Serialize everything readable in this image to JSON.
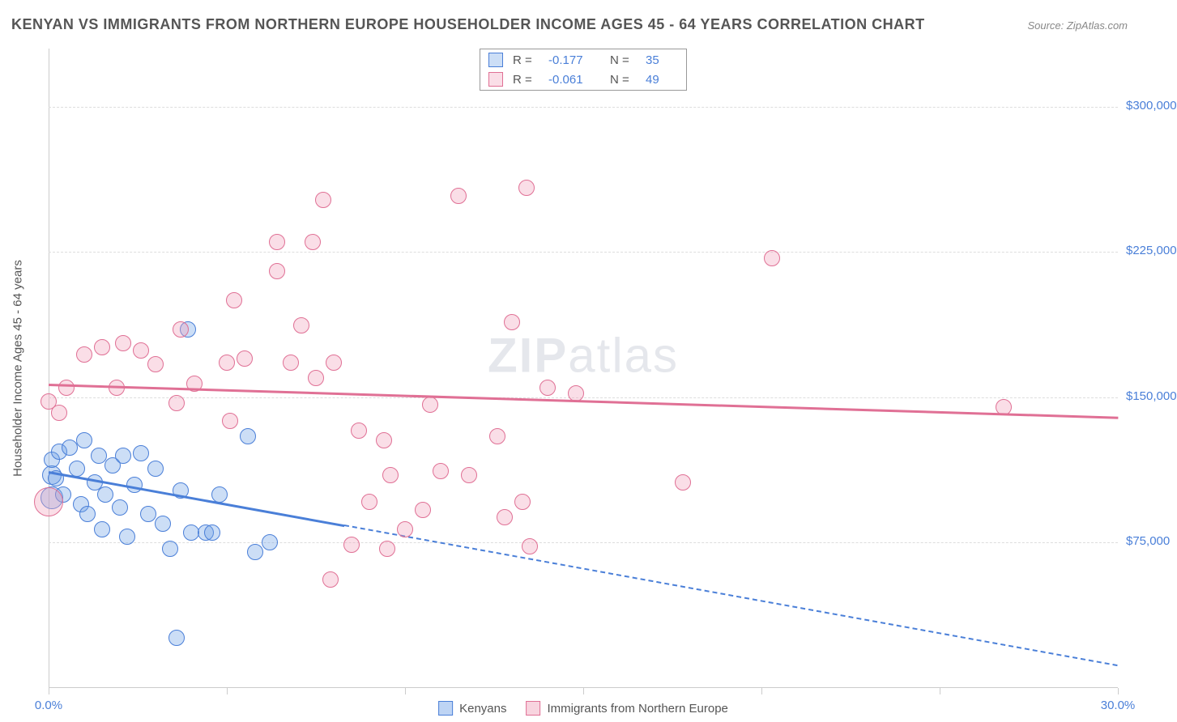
{
  "title": "KENYAN VS IMMIGRANTS FROM NORTHERN EUROPE HOUSEHOLDER INCOME AGES 45 - 64 YEARS CORRELATION CHART",
  "source": "Source: ZipAtlas.com",
  "watermark": {
    "bold": "ZIP",
    "light": "atlas"
  },
  "yaxis_title": "Householder Income Ages 45 - 64 years",
  "chart": {
    "type": "scatter",
    "xlim": [
      0,
      30
    ],
    "ylim": [
      0,
      330000
    ],
    "xtick_values": [
      0,
      5,
      10,
      15,
      20,
      25,
      30
    ],
    "xtick_labels": {
      "0": "0.0%",
      "30": "30.0%"
    },
    "ytick_values": [
      75000,
      150000,
      225000,
      300000
    ],
    "ytick_labels": [
      "$75,000",
      "$150,000",
      "$225,000",
      "$300,000"
    ],
    "grid_color": "#dddddd",
    "axis_color": "#cccccc",
    "background_color": "#ffffff",
    "marker_radius": 10,
    "marker_stroke_width": 1.5,
    "marker_fill_opacity": 0.35
  },
  "series": [
    {
      "name": "Kenyans",
      "color": "#4a7fd8",
      "fill": "rgba(110,160,230,0.35)",
      "stroke": "#4a7fd8",
      "R": "-0.177",
      "N": "35",
      "trend": {
        "x1": 0,
        "y1": 112000,
        "x2": 30,
        "y2": 12000,
        "solid_until_x": 8.3
      },
      "points": [
        {
          "x": 0.1,
          "y": 98000,
          "r": 14
        },
        {
          "x": 0.1,
          "y": 110000,
          "r": 12
        },
        {
          "x": 0.1,
          "y": 118000,
          "r": 10
        },
        {
          "x": 0.2,
          "y": 108000,
          "r": 10
        },
        {
          "x": 0.3,
          "y": 122000,
          "r": 10
        },
        {
          "x": 0.4,
          "y": 100000,
          "r": 10
        },
        {
          "x": 0.6,
          "y": 124000,
          "r": 10
        },
        {
          "x": 0.8,
          "y": 113000,
          "r": 10
        },
        {
          "x": 0.9,
          "y": 95000,
          "r": 10
        },
        {
          "x": 1.0,
          "y": 128000,
          "r": 10
        },
        {
          "x": 1.1,
          "y": 90000,
          "r": 10
        },
        {
          "x": 1.3,
          "y": 106000,
          "r": 10
        },
        {
          "x": 1.4,
          "y": 120000,
          "r": 10
        },
        {
          "x": 1.5,
          "y": 82000,
          "r": 10
        },
        {
          "x": 1.6,
          "y": 100000,
          "r": 10
        },
        {
          "x": 1.8,
          "y": 115000,
          "r": 10
        },
        {
          "x": 2.0,
          "y": 93000,
          "r": 10
        },
        {
          "x": 2.1,
          "y": 120000,
          "r": 10
        },
        {
          "x": 2.2,
          "y": 78000,
          "r": 10
        },
        {
          "x": 2.4,
          "y": 105000,
          "r": 10
        },
        {
          "x": 2.6,
          "y": 121000,
          "r": 10
        },
        {
          "x": 2.8,
          "y": 90000,
          "r": 10
        },
        {
          "x": 3.0,
          "y": 113000,
          "r": 10
        },
        {
          "x": 3.2,
          "y": 85000,
          "r": 10
        },
        {
          "x": 3.4,
          "y": 72000,
          "r": 10
        },
        {
          "x": 3.6,
          "y": 26000,
          "r": 10
        },
        {
          "x": 3.7,
          "y": 102000,
          "r": 10
        },
        {
          "x": 4.0,
          "y": 80000,
          "r": 10
        },
        {
          "x": 4.4,
          "y": 80000,
          "r": 10
        },
        {
          "x": 4.6,
          "y": 80000,
          "r": 10
        },
        {
          "x": 4.8,
          "y": 100000,
          "r": 10
        },
        {
          "x": 5.6,
          "y": 130000,
          "r": 10
        },
        {
          "x": 5.8,
          "y": 70000,
          "r": 10
        },
        {
          "x": 6.2,
          "y": 75000,
          "r": 10
        },
        {
          "x": 3.9,
          "y": 185000,
          "r": 10
        }
      ]
    },
    {
      "name": "Immigrants from Northern Europe",
      "color": "#e68aa6",
      "fill": "rgba(240,160,185,0.35)",
      "stroke": "#e07095",
      "R": "-0.061",
      "N": "49",
      "trend": {
        "x1": 0,
        "y1": 157000,
        "x2": 30,
        "y2": 140000,
        "solid_until_x": 30
      },
      "points": [
        {
          "x": 0.0,
          "y": 148000,
          "r": 10
        },
        {
          "x": 0.0,
          "y": 96000,
          "r": 18
        },
        {
          "x": 0.3,
          "y": 142000,
          "r": 10
        },
        {
          "x": 0.5,
          "y": 155000,
          "r": 10
        },
        {
          "x": 1.0,
          "y": 172000,
          "r": 10
        },
        {
          "x": 1.5,
          "y": 176000,
          "r": 10
        },
        {
          "x": 1.9,
          "y": 155000,
          "r": 10
        },
        {
          "x": 2.1,
          "y": 178000,
          "r": 10
        },
        {
          "x": 2.6,
          "y": 174000,
          "r": 10
        },
        {
          "x": 3.0,
          "y": 167000,
          "r": 10
        },
        {
          "x": 3.6,
          "y": 147000,
          "r": 10
        },
        {
          "x": 3.7,
          "y": 185000,
          "r": 10
        },
        {
          "x": 4.1,
          "y": 157000,
          "r": 10
        },
        {
          "x": 5.0,
          "y": 168000,
          "r": 10
        },
        {
          "x": 5.1,
          "y": 138000,
          "r": 10
        },
        {
          "x": 5.2,
          "y": 200000,
          "r": 10
        },
        {
          "x": 5.5,
          "y": 170000,
          "r": 10
        },
        {
          "x": 6.4,
          "y": 230000,
          "r": 10
        },
        {
          "x": 6.4,
          "y": 215000,
          "r": 10
        },
        {
          "x": 6.8,
          "y": 168000,
          "r": 10
        },
        {
          "x": 7.1,
          "y": 187000,
          "r": 10
        },
        {
          "x": 7.4,
          "y": 230000,
          "r": 10
        },
        {
          "x": 7.5,
          "y": 160000,
          "r": 10
        },
        {
          "x": 7.7,
          "y": 252000,
          "r": 10
        },
        {
          "x": 8.0,
          "y": 168000,
          "r": 10
        },
        {
          "x": 7.9,
          "y": 56000,
          "r": 10
        },
        {
          "x": 8.5,
          "y": 74000,
          "r": 10
        },
        {
          "x": 8.7,
          "y": 133000,
          "r": 10
        },
        {
          "x": 9.0,
          "y": 96000,
          "r": 10
        },
        {
          "x": 9.4,
          "y": 128000,
          "r": 10
        },
        {
          "x": 9.5,
          "y": 72000,
          "r": 10
        },
        {
          "x": 9.6,
          "y": 110000,
          "r": 10
        },
        {
          "x": 10.0,
          "y": 82000,
          "r": 10
        },
        {
          "x": 10.5,
          "y": 92000,
          "r": 10
        },
        {
          "x": 10.7,
          "y": 146000,
          "r": 10
        },
        {
          "x": 11.0,
          "y": 112000,
          "r": 10
        },
        {
          "x": 11.5,
          "y": 254000,
          "r": 10
        },
        {
          "x": 11.8,
          "y": 110000,
          "r": 10
        },
        {
          "x": 12.6,
          "y": 130000,
          "r": 10
        },
        {
          "x": 13.0,
          "y": 189000,
          "r": 10
        },
        {
          "x": 13.3,
          "y": 96000,
          "r": 10
        },
        {
          "x": 13.4,
          "y": 258000,
          "r": 10
        },
        {
          "x": 13.5,
          "y": 73000,
          "r": 10
        },
        {
          "x": 14.0,
          "y": 155000,
          "r": 10
        },
        {
          "x": 14.8,
          "y": 152000,
          "r": 10
        },
        {
          "x": 17.8,
          "y": 106000,
          "r": 10
        },
        {
          "x": 20.3,
          "y": 222000,
          "r": 10
        },
        {
          "x": 26.8,
          "y": 145000,
          "r": 10
        },
        {
          "x": 12.8,
          "y": 88000,
          "r": 10
        }
      ]
    }
  ],
  "legend_bottom": [
    {
      "label": "Kenyans",
      "fill": "rgba(110,160,230,0.45)",
      "stroke": "#4a7fd8"
    },
    {
      "label": "Immigrants from Northern Europe",
      "fill": "rgba(240,160,185,0.45)",
      "stroke": "#e07095"
    }
  ],
  "legend_top_labels": {
    "R": "R =",
    "N": "N ="
  }
}
